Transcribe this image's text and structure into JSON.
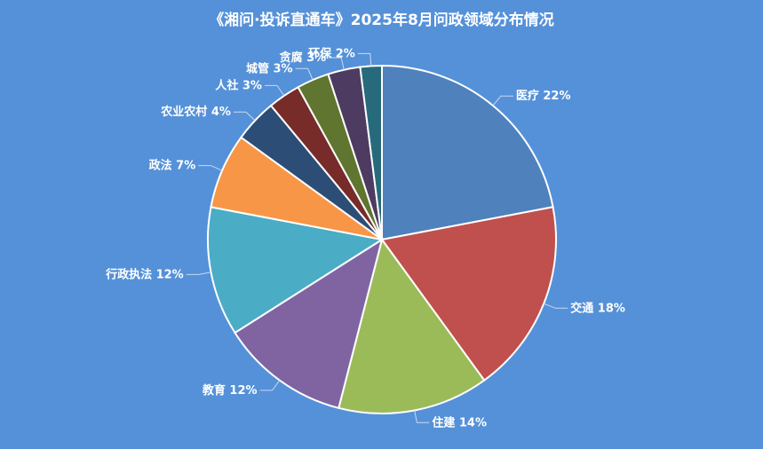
{
  "chart_data": {
    "type": "pie",
    "title": "《湘问·投诉直通车》2025年8月问政领域分布情况",
    "slices": [
      {
        "name": "医疗",
        "value": 22,
        "label": "医疗 22%",
        "color": "#4f81bd"
      },
      {
        "name": "交通",
        "value": 18,
        "label": "交通 18%",
        "color": "#c0504d"
      },
      {
        "name": "住建",
        "value": 14,
        "label": "住建 14%",
        "color": "#9bbb59"
      },
      {
        "name": "教育",
        "value": 12,
        "label": "教育 12%",
        "color": "#8064a2"
      },
      {
        "name": "行政执法",
        "value": 12,
        "label": "行政执法 12%",
        "color": "#4bacc6"
      },
      {
        "name": "政法",
        "value": 7,
        "label": "政法 7%",
        "color": "#f79646"
      },
      {
        "name": "农业农村",
        "value": 4,
        "label": "农业农村 4%",
        "color": "#2c4d75"
      },
      {
        "name": "人社",
        "value": 3,
        "label": "人社 3%",
        "color": "#772c2a"
      },
      {
        "name": "城管",
        "value": 3,
        "label": "城管 3%",
        "color": "#5f7530"
      },
      {
        "name": "贪腐",
        "value": 3,
        "label": "贪腐 3%",
        "color": "#4d3b62"
      },
      {
        "name": "环保",
        "value": 2,
        "label": "环保 2%",
        "color": "#276a7c"
      }
    ]
  }
}
